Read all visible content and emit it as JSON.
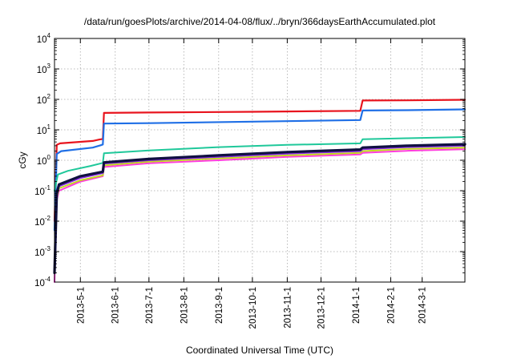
{
  "chart_data": {
    "type": "line",
    "title": "/data/run/goesPlots/archive/2014-04-08/flux/../bryn/366daysEarthAccumulated.plot",
    "xlabel": "Coordinated Universal Time (UTC)",
    "ylabel": "cGy",
    "yscale": "log",
    "ylim": [
      0.0001,
      10000
    ],
    "xlim": [
      "2013-04-08",
      "2014-04-08"
    ],
    "grid": true,
    "y_ticks": [
      {
        "base": "10",
        "exp": "-4",
        "value": 0.0001
      },
      {
        "base": "10",
        "exp": "-3",
        "value": 0.001
      },
      {
        "base": "10",
        "exp": "-2",
        "value": 0.01
      },
      {
        "base": "10",
        "exp": "-1",
        "value": 0.1
      },
      {
        "base": "10",
        "exp": "0",
        "value": 1
      },
      {
        "base": "10",
        "exp": "1",
        "value": 10
      },
      {
        "base": "10",
        "exp": "2",
        "value": 100
      },
      {
        "base": "10",
        "exp": "3",
        "value": 1000
      },
      {
        "base": "10",
        "exp": "4",
        "value": 10000
      }
    ],
    "x_ticks": [
      {
        "label": "2013-5-1",
        "date": "2013-05-01"
      },
      {
        "label": "2013-6-1",
        "date": "2013-06-01"
      },
      {
        "label": "2013-7-1",
        "date": "2013-07-01"
      },
      {
        "label": "2013-8-1",
        "date": "2013-08-01"
      },
      {
        "label": "2013-9-1",
        "date": "2013-09-01"
      },
      {
        "label": "2013-10-1",
        "date": "2013-10-01"
      },
      {
        "label": "2013-11-1",
        "date": "2013-11-01"
      },
      {
        "label": "2013-12-1",
        "date": "2013-12-01"
      },
      {
        "label": "2014-1-1",
        "date": "2014-01-01"
      },
      {
        "label": "2014-2-1",
        "date": "2014-02-01"
      },
      {
        "label": "2014-3-1",
        "date": "2014-03-01"
      }
    ],
    "series": [
      {
        "color": "#e8141e",
        "width": 2.2,
        "points": [
          [
            "2013-04-08",
            0.01
          ],
          [
            "2013-04-10",
            3.2
          ],
          [
            "2013-04-13",
            3.6
          ],
          [
            "2013-05-12",
            4.3
          ],
          [
            "2013-05-18",
            4.8
          ],
          [
            "2013-05-21",
            5.0
          ],
          [
            "2013-05-22",
            36
          ],
          [
            "2013-07-01",
            37
          ],
          [
            "2013-10-01",
            39
          ],
          [
            "2014-01-05",
            42
          ],
          [
            "2014-01-07",
            92
          ],
          [
            "2014-02-15",
            93
          ],
          [
            "2014-04-08",
            97
          ]
        ]
      },
      {
        "color": "#1f6fe6",
        "width": 2.2,
        "points": [
          [
            "2013-04-08",
            0.005
          ],
          [
            "2013-04-10",
            1.6
          ],
          [
            "2013-04-14",
            2.0
          ],
          [
            "2013-05-12",
            2.6
          ],
          [
            "2013-05-19",
            3.1
          ],
          [
            "2013-05-21",
            3.3
          ],
          [
            "2013-05-22",
            16
          ],
          [
            "2013-07-01",
            16.5
          ],
          [
            "2013-10-01",
            18.5
          ],
          [
            "2014-01-05",
            21
          ],
          [
            "2014-01-07",
            43
          ],
          [
            "2014-02-15",
            44
          ],
          [
            "2014-04-08",
            47
          ]
        ]
      },
      {
        "color": "#1fc89a",
        "width": 2.0,
        "points": [
          [
            "2013-04-08",
            0.1
          ],
          [
            "2013-04-11",
            0.34
          ],
          [
            "2013-04-20",
            0.45
          ],
          [
            "2013-05-10",
            0.65
          ],
          [
            "2013-05-21",
            0.82
          ],
          [
            "2013-05-22",
            1.7
          ],
          [
            "2013-07-01",
            2.1
          ],
          [
            "2013-09-01",
            2.7
          ],
          [
            "2013-11-01",
            3.2
          ],
          [
            "2014-01-05",
            3.6
          ],
          [
            "2014-01-07",
            4.9
          ],
          [
            "2014-02-15",
            5.3
          ],
          [
            "2014-04-08",
            5.8
          ]
        ]
      },
      {
        "color": "#ff3ddd",
        "width": 2.0,
        "points": [
          [
            "2013-04-08",
            0.0001
          ],
          [
            "2013-04-10",
            0.05
          ],
          [
            "2013-04-12",
            0.1
          ],
          [
            "2013-05-01",
            0.2
          ],
          [
            "2013-05-21",
            0.3
          ],
          [
            "2013-05-22",
            0.6
          ],
          [
            "2013-07-01",
            0.8
          ],
          [
            "2013-09-01",
            1.0
          ],
          [
            "2013-11-01",
            1.3
          ],
          [
            "2014-01-05",
            1.55
          ],
          [
            "2014-01-07",
            1.75
          ],
          [
            "2014-02-15",
            2.05
          ],
          [
            "2014-04-08",
            2.3
          ]
        ]
      },
      {
        "color": "#c0d81c",
        "width": 2.0,
        "points": [
          [
            "2013-04-08",
            0.0002
          ],
          [
            "2013-04-10",
            0.06
          ],
          [
            "2013-04-12",
            0.12
          ],
          [
            "2013-05-01",
            0.22
          ],
          [
            "2013-05-21",
            0.32
          ],
          [
            "2013-05-22",
            0.68
          ],
          [
            "2013-07-01",
            0.9
          ],
          [
            "2013-09-01",
            1.15
          ],
          [
            "2013-11-01",
            1.45
          ],
          [
            "2014-01-05",
            1.75
          ],
          [
            "2014-01-07",
            2.0
          ],
          [
            "2014-02-15",
            2.35
          ],
          [
            "2014-04-08",
            2.6
          ]
        ]
      },
      {
        "color": "#8a2be2",
        "width": 2.0,
        "points": [
          [
            "2013-04-08",
            0.0002
          ],
          [
            "2013-04-10",
            0.07
          ],
          [
            "2013-04-12",
            0.14
          ],
          [
            "2013-05-01",
            0.26
          ],
          [
            "2013-05-21",
            0.38
          ],
          [
            "2013-05-22",
            0.78
          ],
          [
            "2013-07-01",
            1.0
          ],
          [
            "2013-09-01",
            1.3
          ],
          [
            "2013-11-01",
            1.65
          ],
          [
            "2014-01-05",
            2.0
          ],
          [
            "2014-01-07",
            2.3
          ],
          [
            "2014-02-15",
            2.7
          ],
          [
            "2014-04-08",
            3.0
          ]
        ]
      },
      {
        "color": "#101040",
        "width": 3.2,
        "points": [
          [
            "2013-04-08",
            0.0002
          ],
          [
            "2013-04-10",
            0.08
          ],
          [
            "2013-04-12",
            0.16
          ],
          [
            "2013-05-01",
            0.3
          ],
          [
            "2013-05-21",
            0.42
          ],
          [
            "2013-05-22",
            0.85
          ],
          [
            "2013-07-01",
            1.1
          ],
          [
            "2013-09-01",
            1.45
          ],
          [
            "2013-11-01",
            1.85
          ],
          [
            "2014-01-05",
            2.25
          ],
          [
            "2014-01-07",
            2.6
          ],
          [
            "2014-02-15",
            3.0
          ],
          [
            "2014-04-08",
            3.35
          ]
        ]
      }
    ]
  }
}
